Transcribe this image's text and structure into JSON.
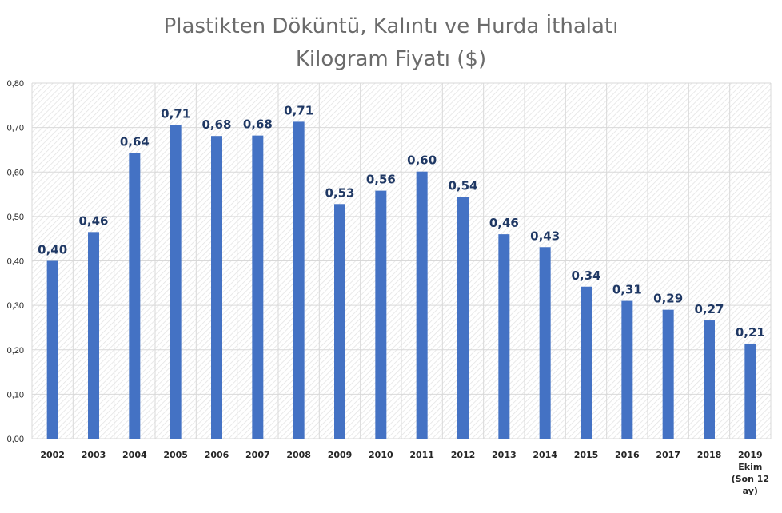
{
  "chart_data": {
    "type": "bar",
    "title_lines": [
      "Plastikten Döküntü, Kalıntı ve Hurda İthalatı",
      "Kilogram Fiyatı ($)"
    ],
    "categories": [
      "2002",
      "2003",
      "2004",
      "2005",
      "2006",
      "2007",
      "2008",
      "2009",
      "2010",
      "2011",
      "2012",
      "2013",
      "2014",
      "2015",
      "2016",
      "2017",
      "2018",
      "2019 Ekim (Son 12 ay)"
    ],
    "category_display": [
      [
        "2002"
      ],
      [
        "2003"
      ],
      [
        "2004"
      ],
      [
        "2005"
      ],
      [
        "2006"
      ],
      [
        "2007"
      ],
      [
        "2008"
      ],
      [
        "2009"
      ],
      [
        "2010"
      ],
      [
        "2011"
      ],
      [
        "2012"
      ],
      [
        "2013"
      ],
      [
        "2014"
      ],
      [
        "2015"
      ],
      [
        "2016"
      ],
      [
        "2017"
      ],
      [
        "2018"
      ],
      [
        "2019",
        "Ekim",
        "(Son 12",
        "ay)"
      ]
    ],
    "values": [
      0.4,
      0.465,
      0.643,
      0.706,
      0.681,
      0.682,
      0.713,
      0.528,
      0.558,
      0.601,
      0.544,
      0.46,
      0.431,
      0.342,
      0.31,
      0.29,
      0.266,
      0.214
    ],
    "value_labels": [
      "0,40",
      "0,46",
      "0,64",
      "0,71",
      "0,68",
      "0,68",
      "0,71",
      "0,53",
      "0,56",
      "0,60",
      "0,54",
      "0,46",
      "0,43",
      "0,34",
      "0,31",
      "0,29",
      "0,27",
      "0,21"
    ],
    "yticks": [
      0.0,
      0.1,
      0.2,
      0.3,
      0.4,
      0.5,
      0.6,
      0.7,
      0.8
    ],
    "ytick_labels": [
      "0,00",
      "0,10",
      "0,20",
      "0,30",
      "0,40",
      "0,50",
      "0,60",
      "0,70",
      "0,80"
    ],
    "ylim": [
      0,
      0.8
    ],
    "xlabel": "",
    "ylabel": "",
    "grid": true,
    "colors": {
      "bar": "#4472c4",
      "label": "#1f3864",
      "grid": "#d9d9d9",
      "hatch": "#e4e4e4"
    }
  }
}
